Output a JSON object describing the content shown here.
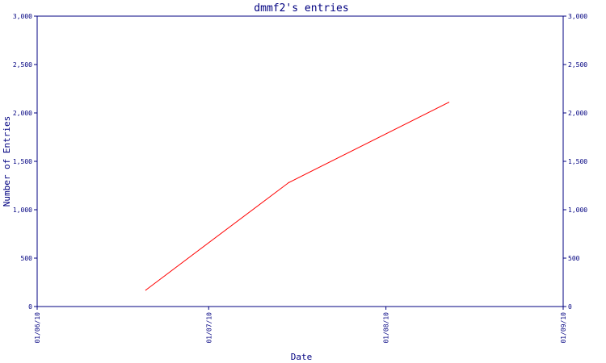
{
  "chart_data": {
    "type": "line",
    "title": "dmmf2's entries",
    "xlabel": "Date",
    "ylabel": "Number of Entries",
    "x_tick_labels": [
      "01/06/10",
      "01/07/10",
      "01/08/10",
      "01/09/10"
    ],
    "x_ticks": [
      "2010-06-01",
      "2010-07-01",
      "2010-08-01",
      "2010-09-01"
    ],
    "y_ticks": [
      0,
      500,
      1000,
      1500,
      2000,
      2500,
      3000
    ],
    "y_tick_labels": [
      "0",
      "500",
      "1,000",
      "1,500",
      "2,000",
      "2,500",
      "3,000"
    ],
    "xlim": [
      "2010-06-01",
      "2010-09-01"
    ],
    "ylim": [
      0,
      3000
    ],
    "grid": false,
    "series": [
      {
        "color": "#ff0000",
        "x": [
          "2010-06-20",
          "2010-07-15",
          "2010-08-12"
        ],
        "y": [
          170,
          1280,
          2110
        ]
      }
    ]
  }
}
